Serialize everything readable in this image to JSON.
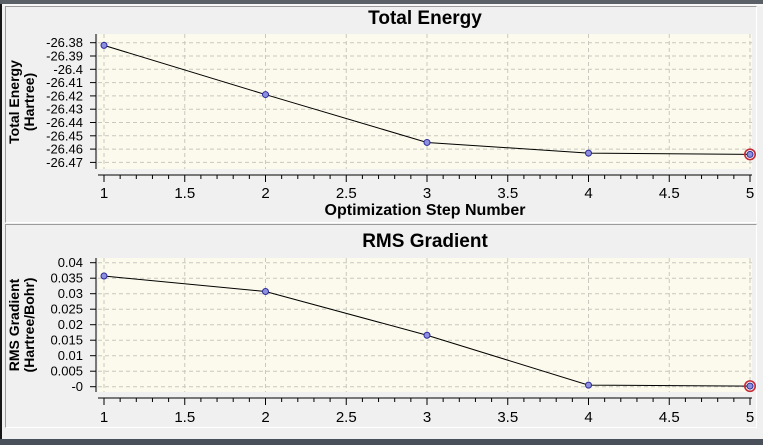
{
  "window": {
    "top_strip_color": "#5a6066",
    "bottom_strip_color": "#4a505a",
    "left_edge_color": "#161616",
    "panel_bg": "#f0f0f0",
    "plot_bg": "#fcfaec",
    "grid_color": "#c8c8c0",
    "axis_color": "#000000",
    "series_line_color": "#000000",
    "marker_fill": "#8f8fe0",
    "marker_stroke": "#2b2b9a",
    "current_marker_ring_color": "#c52a39",
    "text_color": "#000000"
  },
  "chart_data": [
    {
      "type": "line",
      "title": "Total Energy",
      "ylabel": "Total Energy (Hartree)",
      "ylabel_lines": [
        "Total Energy",
        "(Hartree)"
      ],
      "xlabel": "Optimization Step Number",
      "x": [
        1,
        2,
        3,
        4,
        5
      ],
      "y": [
        -26.382,
        -26.419,
        -26.455,
        -26.463,
        -26.464
      ],
      "xlim": [
        1,
        5
      ],
      "ylim": [
        -26.47,
        -26.38
      ],
      "xticks": [
        "1",
        "1.5",
        "2",
        "2.5",
        "3",
        "3.5",
        "4",
        "4.5",
        "5"
      ],
      "yticks": [
        "-26.38",
        "-26.39",
        "-26.4",
        "-26.41",
        "-26.42",
        "-26.43",
        "-26.44",
        "-26.45",
        "-26.46",
        "-26.47"
      ],
      "minor_x_tick_step": 0.1,
      "grid": true,
      "legend": null,
      "current_point_index": 4
    },
    {
      "type": "line",
      "title": "RMS Gradient",
      "ylabel": "RMS Gradient (Hartree/Bohr)",
      "ylabel_lines": [
        "RMS Gradient",
        "(Hartree/Bohr)"
      ],
      "xlabel": "",
      "x": [
        1,
        2,
        3,
        4,
        5
      ],
      "y": [
        0.0357,
        0.0307,
        0.0166,
        0.0005,
        0.0002
      ],
      "xlim": [
        1,
        5
      ],
      "ylim": [
        0,
        0.04
      ],
      "xticks": [
        "1",
        "1.5",
        "2",
        "2.5",
        "3",
        "3.5",
        "4",
        "4.5",
        "5"
      ],
      "yticks": [
        "0.04",
        "0.035",
        "0.03",
        "0.025",
        "0.02",
        "0.015",
        "0.01",
        "0.005",
        "-0"
      ],
      "minor_x_tick_step": 0.1,
      "grid": true,
      "legend": null,
      "current_point_index": 4
    }
  ]
}
